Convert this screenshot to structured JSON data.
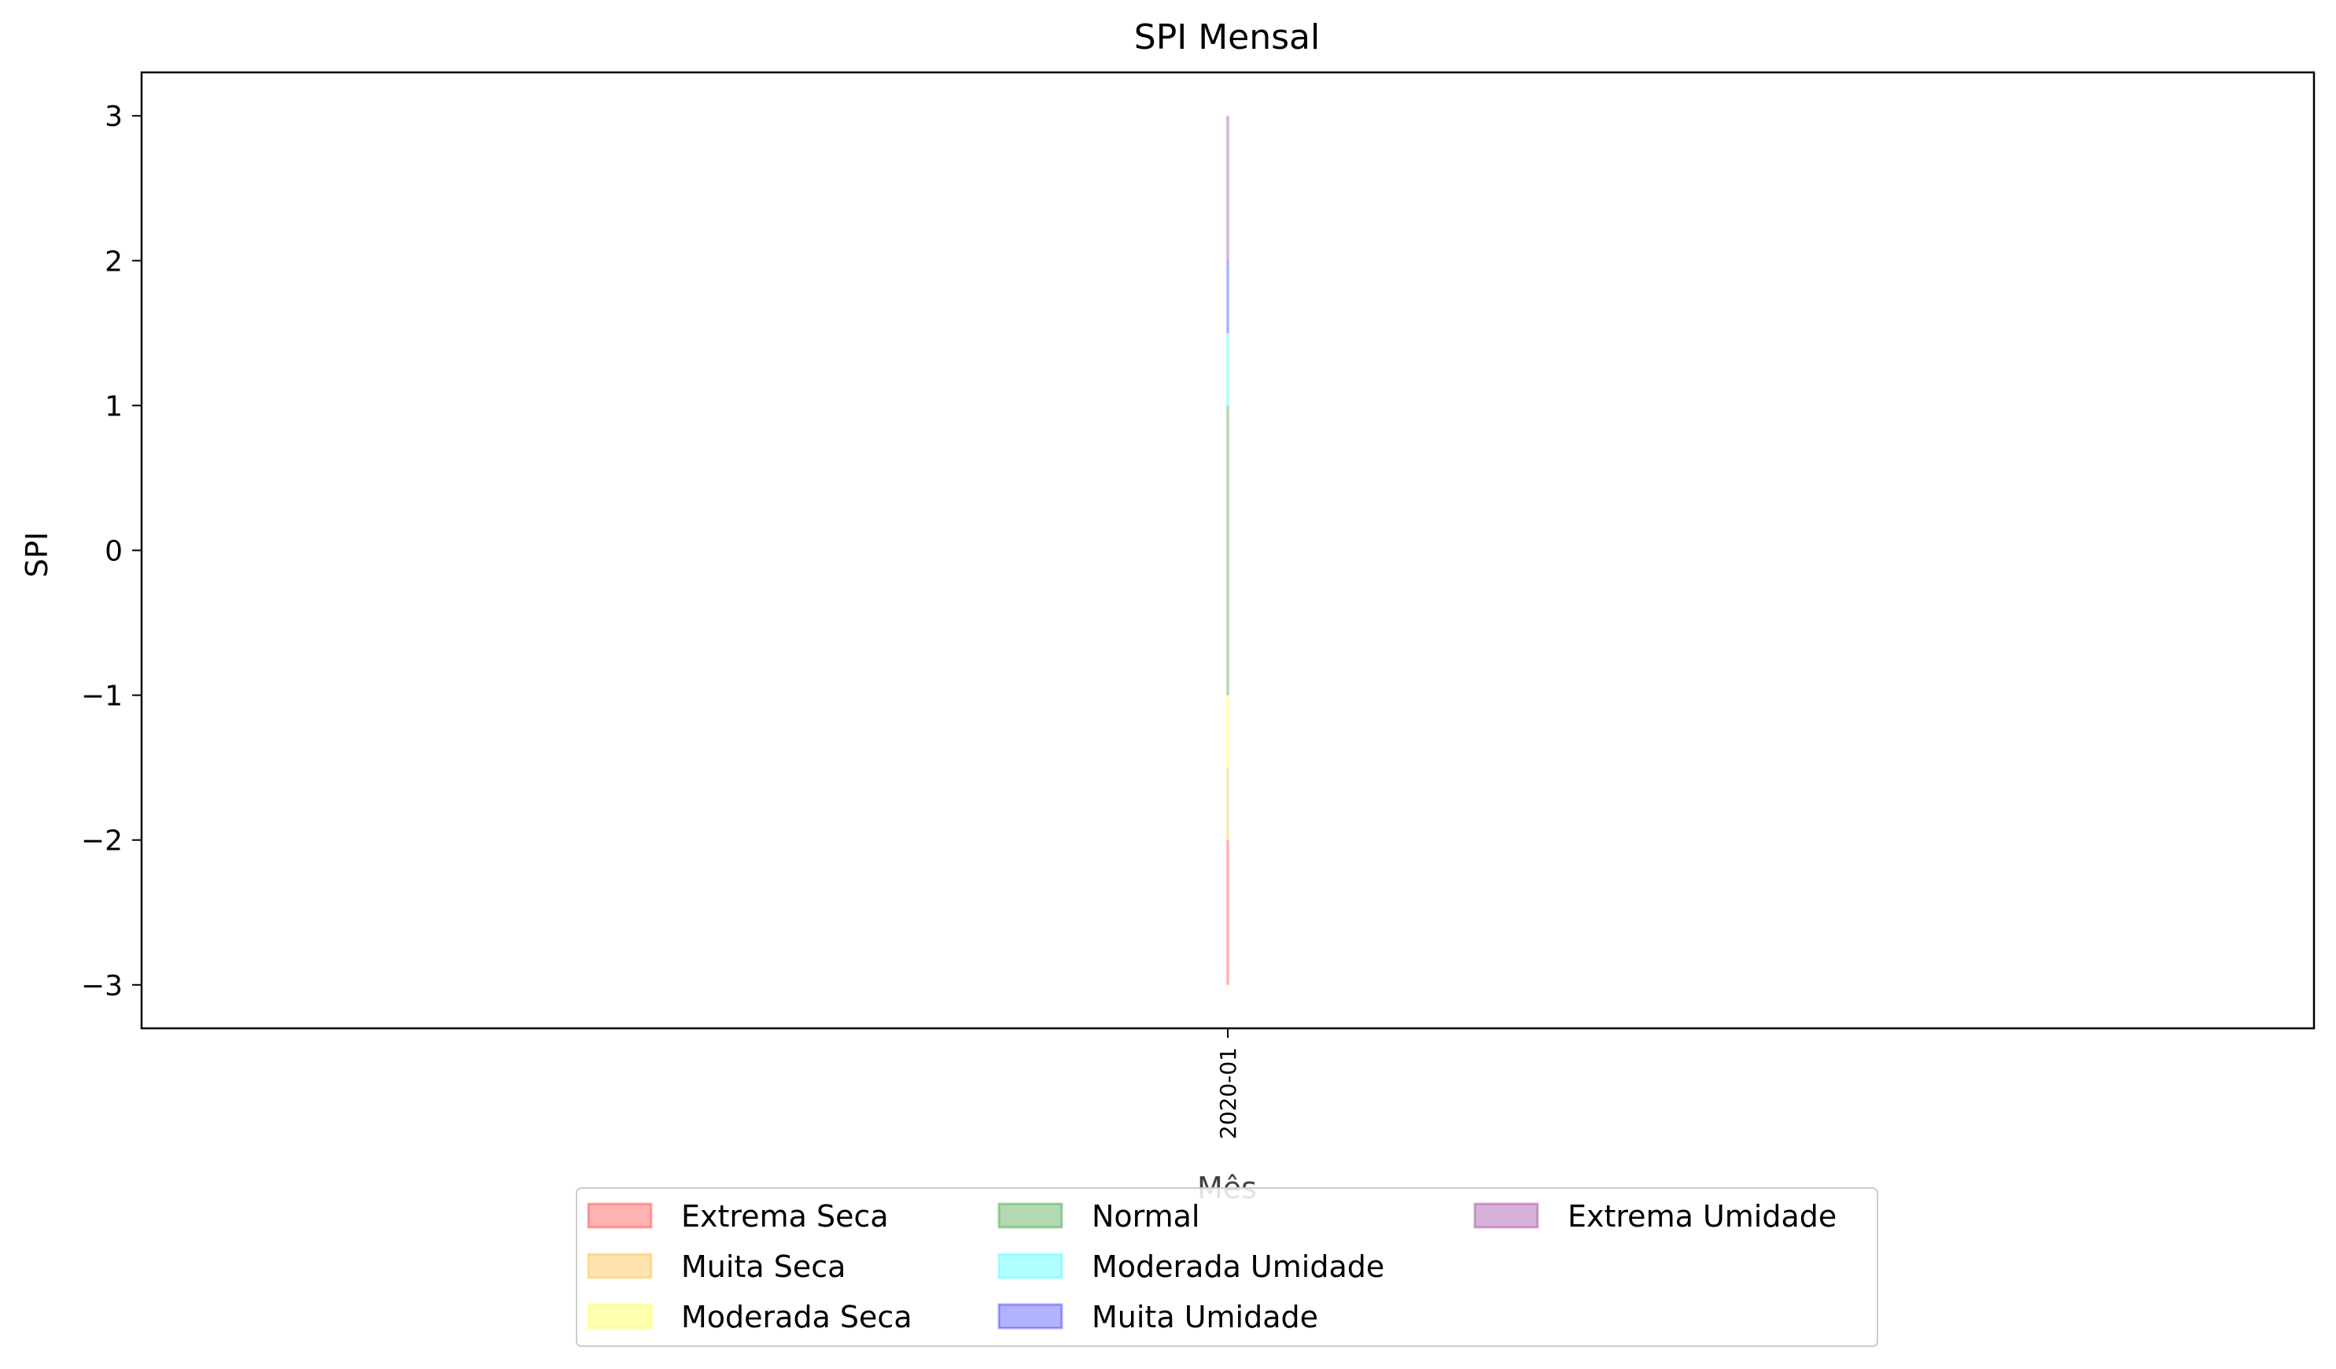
{
  "chart_data": {
    "type": "area",
    "title": "SPI Mensal",
    "xlabel": "Mês",
    "ylabel": "SPI",
    "ylim": [
      -3.3,
      3.3
    ],
    "yticks": [
      {
        "value": 3,
        "label": "3"
      },
      {
        "value": 2,
        "label": "2"
      },
      {
        "value": 1,
        "label": "1"
      },
      {
        "value": 0,
        "label": "0"
      },
      {
        "value": -1,
        "label": "−1"
      },
      {
        "value": -2,
        "label": "−2"
      },
      {
        "value": -3,
        "label": "−3"
      }
    ],
    "categories": [
      "2020-01"
    ],
    "grid": false,
    "legend_position": "bottom-center",
    "series": [
      {
        "name": "Extrema Seca",
        "from": -3,
        "to": -2,
        "color": "#ff0000",
        "opacity": 0.3
      },
      {
        "name": "Muita Seca",
        "from": -2,
        "to": -1.5,
        "color": "#ffa500",
        "opacity": 0.3
      },
      {
        "name": "Moderada Seca",
        "from": -1.5,
        "to": -1,
        "color": "#ffff00",
        "opacity": 0.3
      },
      {
        "name": "Normal",
        "from": -1,
        "to": 1,
        "color": "#008000",
        "opacity": 0.3
      },
      {
        "name": "Moderada Umidade",
        "from": 1,
        "to": 1.5,
        "color": "#00ffff",
        "opacity": 0.3
      },
      {
        "name": "Muita Umidade",
        "from": 1.5,
        "to": 2,
        "color": "#0000ff",
        "opacity": 0.3
      },
      {
        "name": "Extrema Umidade",
        "from": 2,
        "to": 3,
        "color": "#800080",
        "opacity": 0.3
      }
    ]
  }
}
